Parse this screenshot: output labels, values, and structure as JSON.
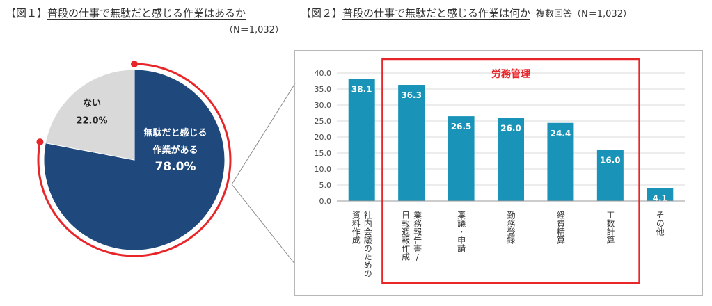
{
  "fig1": {
    "title_bracket": "【図１】",
    "title": "普段の仕事で無駄だと感じる作業はあるか",
    "n_note": "（N＝1,032）"
  },
  "fig2": {
    "title_bracket": "【図２】",
    "title": "普段の仕事で無駄だと感じる作業は何か",
    "note": "複数回答（N＝1,032）",
    "highlight_label": "労務管理"
  },
  "colors": {
    "pie_main": "#1f497d",
    "pie_other": "#d9d9d9",
    "bar": "#1a93b8",
    "highlight": "#e8262a",
    "grid": "#d9d9d9"
  },
  "chart_data": [
    {
      "type": "pie",
      "slices": [
        {
          "label_lines": [
            "無駄だと感じる",
            "作業がある"
          ],
          "value": 78.0,
          "value_label": "78.0%"
        },
        {
          "label_lines": [
            "ない"
          ],
          "value": 22.0,
          "value_label": "22.0%"
        }
      ]
    },
    {
      "type": "bar",
      "categories": [
        "社内会議のための資料作成",
        "業務報告書/日報週報作成",
        "稟議・申請",
        "勤務登録",
        "経費精算",
        "工数計算",
        "その他"
      ],
      "category_lines": [
        [
          "社内会議のための",
          "資料作成"
        ],
        [
          "業務報告書/",
          "日報週報作成"
        ],
        [
          "稟議・申請"
        ],
        [
          "勤務登録"
        ],
        [
          "経費精算"
        ],
        [
          "工数計算"
        ],
        [
          "その他"
        ]
      ],
      "values": [
        38.1,
        36.3,
        26.5,
        26.0,
        24.4,
        16.0,
        4.1
      ],
      "value_labels": [
        "38.1",
        "36.3",
        "26.5",
        "26.0",
        "24.4",
        "16.0",
        "4.1"
      ],
      "yticks": [
        "0.0",
        "5.0",
        "10.0",
        "15.0",
        "20.0",
        "25.0",
        "30.0",
        "35.0",
        "40.0"
      ],
      "ylim": [
        0,
        40
      ],
      "grid": true
    }
  ]
}
